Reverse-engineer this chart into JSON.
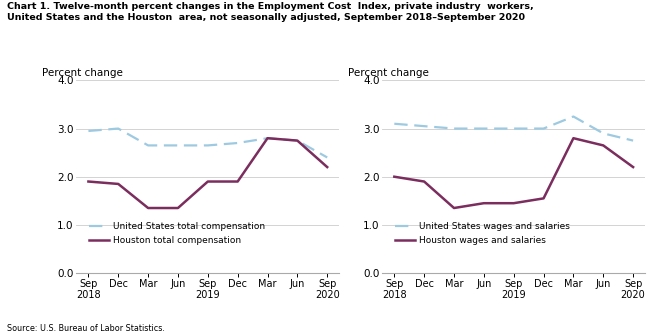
{
  "title_line1": "Chart 1. Twelve-month percent changes in the Employment Cost  Index, private industry  workers,",
  "title_line2": "United States and the Houston  area, not seasonally adjusted, September 2018–September 2020",
  "source": "Source: U.S. Bureau of Labor Statistics.",
  "ylabel": "Percent change",
  "ylim": [
    0.0,
    4.0
  ],
  "yticks": [
    0.0,
    1.0,
    2.0,
    3.0,
    4.0
  ],
  "x_positions": [
    0,
    1,
    2,
    3,
    4,
    5,
    6,
    7,
    8
  ],
  "xtick_labels": [
    "Sep\n2018",
    "Dec",
    "Mar",
    "Jun",
    "Sep\n2019",
    "Dec",
    "Mar",
    "Jun",
    "Sep\n2020"
  ],
  "panel1": {
    "us_total_comp": [
      2.95,
      3.0,
      2.65,
      2.65,
      2.65,
      2.7,
      2.8,
      2.75,
      2.4
    ],
    "houston_total_comp": [
      1.9,
      1.85,
      1.35,
      1.35,
      1.9,
      1.9,
      2.8,
      2.75,
      2.2
    ],
    "us_label": "United States total compensation",
    "houston_label": "Houston total compensation"
  },
  "panel2": {
    "us_wages_salaries": [
      3.1,
      3.05,
      3.0,
      3.0,
      3.0,
      3.0,
      3.25,
      2.9,
      2.75
    ],
    "houston_wages_salaries": [
      2.0,
      1.9,
      1.35,
      1.45,
      1.45,
      1.55,
      2.8,
      2.65,
      2.2
    ],
    "us_label": "United States wages and salaries",
    "houston_label": "Houston wages and salaries"
  },
  "us_color": "#9ECAE1",
  "houston_color": "#7B2D5E",
  "us_linewidth": 1.6,
  "houston_linewidth": 1.8,
  "grid_color": "#cccccc",
  "bg_color": "#ffffff"
}
